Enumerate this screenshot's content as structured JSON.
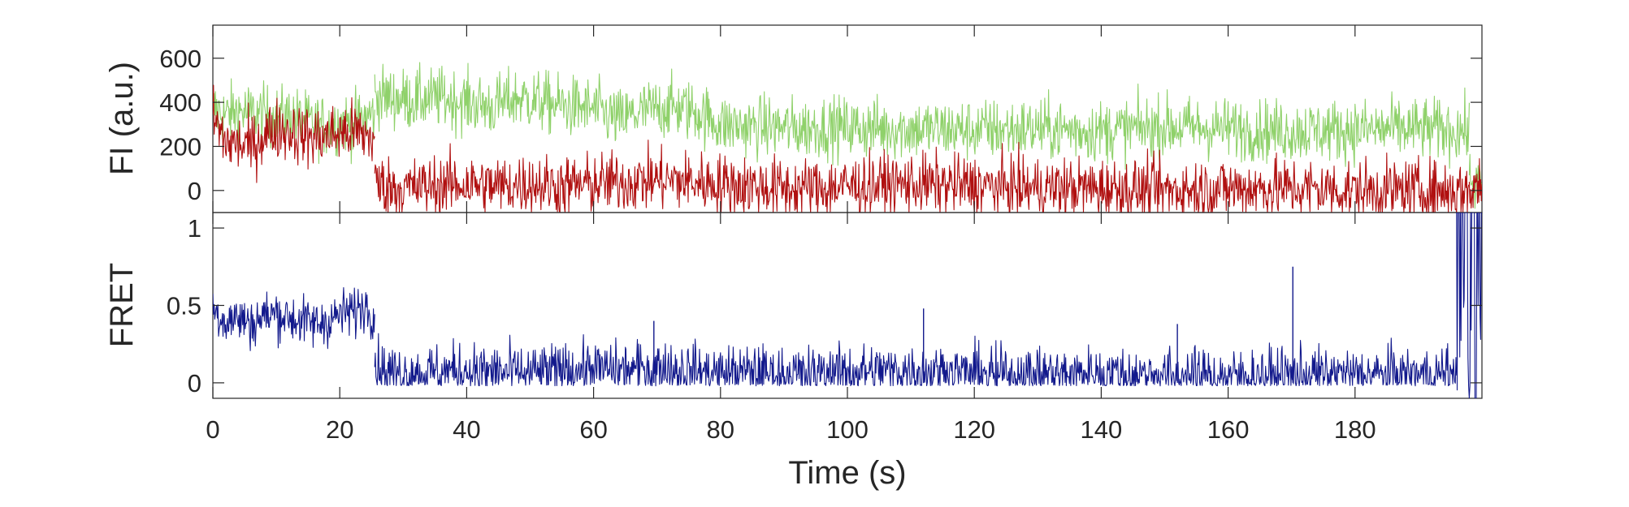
{
  "chart_data": [
    {
      "type": "line",
      "panel": "top",
      "title": "",
      "xlabel": "",
      "ylabel": "FI (a.u.)",
      "xlim": [
        0,
        200
      ],
      "ylim": [
        -100,
        750
      ],
      "yticks": [
        0,
        200,
        400,
        600
      ],
      "ytick_labels": [
        "0",
        "200",
        "400",
        "600"
      ],
      "grid": false,
      "series": [
        {
          "color": "#8fd16a",
          "segments": [
            {
              "x": [
                0,
                2,
                4,
                6,
                8,
                10,
                12,
                14,
                16,
                18,
                20,
                22,
                24,
                25.5
              ],
              "y": [
                370,
                340,
                360,
                350,
                340,
                330,
                340,
                320,
                300,
                290,
                310,
                300,
                330,
                350
              ]
            },
            {
              "x": [
                25.5,
                28,
                32,
                36,
                40,
                44,
                48,
                52,
                56,
                60,
                64,
                68,
                72,
                76,
                80,
                84,
                88,
                92,
                96,
                100,
                110,
                120,
                130,
                140,
                150,
                160,
                170,
                180,
                190,
                198
              ],
              "y": [
                430,
                420,
                410,
                420,
                400,
                380,
                420,
                400,
                380,
                370,
                320,
                360,
                380,
                360,
                300,
                290,
                290,
                280,
                290,
                285,
                280,
                275,
                280,
                270,
                290,
                280,
                270,
                275,
                280,
                270
              ]
            },
            {
              "x": [
                198,
                199,
                200
              ],
              "y": [
                60,
                30,
                10
              ]
            }
          ]
        },
        {
          "color": "#b01010",
          "segments": [
            {
              "x": [
                0,
                2,
                4,
                6,
                8,
                10,
                12,
                14,
                16,
                18,
                20,
                22,
                24,
                25.5
              ],
              "y": [
                330,
                220,
                210,
                200,
                250,
                280,
                270,
                250,
                240,
                250,
                260,
                270,
                250,
                240
              ]
            },
            {
              "x": [
                25.5,
                27,
                30,
                35,
                40,
                45,
                50,
                55,
                60,
                65,
                70,
                75,
                80,
                85,
                90,
                95,
                100,
                110,
                120,
                130,
                140,
                150,
                160,
                170,
                180,
                190,
                198
              ],
              "y": [
                40,
                20,
                10,
                20,
                30,
                20,
                30,
                20,
                30,
                40,
                50,
                40,
                30,
                20,
                10,
                10,
                20,
                30,
                20,
                10,
                10,
                0,
                10,
                10,
                0,
                0,
                0
              ]
            },
            {
              "x": [
                198,
                199,
                200
              ],
              "y": [
                0,
                20,
                30
              ]
            }
          ]
        }
      ]
    },
    {
      "type": "line",
      "panel": "bottom",
      "title": "",
      "xlabel": "Time (s)",
      "ylabel": "FRET",
      "xlim": [
        0,
        200
      ],
      "ylim": [
        -0.1,
        1.1
      ],
      "xticks": [
        0,
        20,
        40,
        60,
        80,
        100,
        120,
        140,
        160,
        180
      ],
      "xtick_labels": [
        "0",
        "20",
        "40",
        "60",
        "80",
        "100",
        "120",
        "140",
        "160",
        "180"
      ],
      "yticks": [
        0,
        0.5,
        1
      ],
      "ytick_labels": [
        "0",
        "0.5",
        "1"
      ],
      "grid": false,
      "series": [
        {
          "color": "#12198c",
          "segments": [
            {
              "x": [
                0,
                2,
                4,
                6,
                8,
                10,
                12,
                14,
                16,
                18,
                20,
                22,
                24,
                25.5
              ],
              "y": [
                0.48,
                0.4,
                0.42,
                0.38,
                0.43,
                0.45,
                0.42,
                0.4,
                0.38,
                0.4,
                0.44,
                0.46,
                0.5,
                0.45
              ]
            },
            {
              "x": [
                25.5,
                27,
                30,
                35,
                40,
                45,
                50,
                55,
                60,
                65,
                70,
                75,
                80,
                85,
                90,
                95,
                100,
                110,
                120,
                130,
                140,
                150,
                160,
                170,
                180,
                190,
                196
              ],
              "y": [
                0.12,
                0.08,
                0.06,
                0.07,
                0.08,
                0.07,
                0.06,
                0.08,
                0.09,
                0.08,
                0.1,
                0.08,
                0.06,
                0.07,
                0.05,
                0.06,
                0.07,
                0.08,
                0.06,
                0.05,
                0.06,
                0.05,
                0.04,
                0.05,
                0.05,
                0.05,
                0.06
              ]
            },
            {
              "x": [
                196,
                197.5,
                198,
                198.5,
                199,
                199.5,
                200
              ],
              "y": [
                0.3,
                1.1,
                0.2,
                1.1,
                0.1,
                1.1,
                0.4
              ]
            }
          ],
          "spikes": [
            {
              "x": 170.2,
              "y": 0.75
            },
            {
              "x": 112,
              "y": 0.48
            },
            {
              "x": 69.5,
              "y": 0.4
            },
            {
              "x": 152,
              "y": 0.38
            }
          ]
        }
      ]
    }
  ]
}
